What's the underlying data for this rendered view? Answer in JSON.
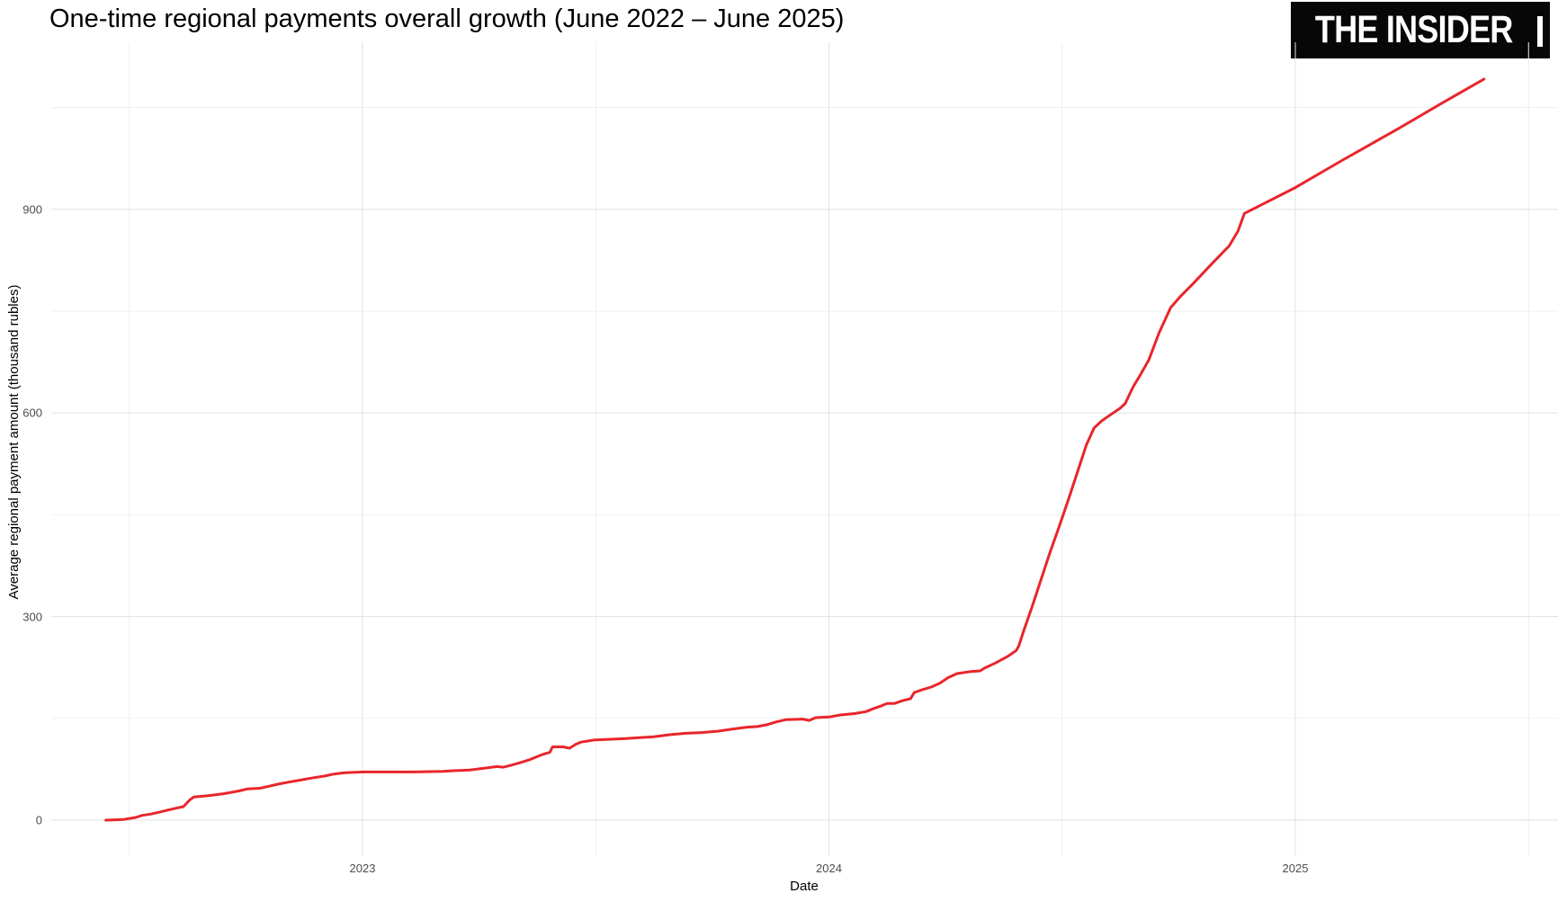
{
  "title": "One-time regional payments overall growth (June 2022 – June 2025)",
  "logo": {
    "text": "THE INSIDER"
  },
  "chart_data": {
    "type": "line",
    "title": "One-time regional payments overall growth (June 2022 – June 2025)",
    "xlabel": "Date",
    "ylabel": "Average regional payment amount (thousand rubles)",
    "x_tick_labels": [
      "2023",
      "2024",
      "2025"
    ],
    "x_tick_years": [
      2023,
      2024,
      2025
    ],
    "x_minor_tick_years": [
      2022.5,
      2023.5,
      2024.5,
      2025.5
    ],
    "y_tick_labels": [
      "0",
      "300",
      "600",
      "900"
    ],
    "y_tick_values": [
      0,
      300,
      600,
      900
    ],
    "y_minor_tick_values": [
      150,
      450,
      750,
      1050
    ],
    "x_range": [
      "2022-06-13",
      "2025-05-27"
    ],
    "ylim": [
      0,
      1100
    ],
    "grid": "on",
    "legend": "none",
    "line_color": "#e8262b",
    "series": [
      {
        "name": "Average regional payment amount (thousand rubles)",
        "points": [
          [
            "2022-06-13",
            0
          ],
          [
            "2022-06-27",
            1
          ],
          [
            "2022-07-06",
            4
          ],
          [
            "2022-07-11",
            7
          ],
          [
            "2022-07-18",
            9
          ],
          [
            "2022-07-25",
            12
          ],
          [
            "2022-08-01",
            15
          ],
          [
            "2022-08-08",
            18
          ],
          [
            "2022-08-13",
            20
          ],
          [
            "2022-08-18",
            30
          ],
          [
            "2022-08-21",
            34
          ],
          [
            "2022-09-02",
            36
          ],
          [
            "2022-09-14",
            39
          ],
          [
            "2022-09-26",
            43
          ],
          [
            "2022-10-02",
            46
          ],
          [
            "2022-10-12",
            47
          ],
          [
            "2022-10-19",
            50
          ],
          [
            "2022-10-26",
            53
          ],
          [
            "2022-11-04",
            56
          ],
          [
            "2022-11-13",
            59
          ],
          [
            "2022-11-22",
            62
          ],
          [
            "2022-12-02",
            65
          ],
          [
            "2022-12-09",
            68
          ],
          [
            "2022-12-18",
            70
          ],
          [
            "2023-01-01",
            71
          ],
          [
            "2023-02-10",
            71
          ],
          [
            "2023-03-03",
            72
          ],
          [
            "2023-03-13",
            73
          ],
          [
            "2023-03-24",
            74
          ],
          [
            "2023-04-07",
            77
          ],
          [
            "2023-04-15",
            79
          ],
          [
            "2023-04-20",
            78
          ],
          [
            "2023-04-26",
            81
          ],
          [
            "2023-05-03",
            85
          ],
          [
            "2023-05-10",
            89
          ],
          [
            "2023-05-19",
            96
          ],
          [
            "2023-05-26",
            100
          ],
          [
            "2023-05-28",
            108
          ],
          [
            "2023-06-06",
            108
          ],
          [
            "2023-06-11",
            106
          ],
          [
            "2023-06-16",
            112
          ],
          [
            "2023-06-20",
            115
          ],
          [
            "2023-06-30",
            118
          ],
          [
            "2023-07-23",
            120
          ],
          [
            "2023-08-16",
            123
          ],
          [
            "2023-08-29",
            126
          ],
          [
            "2023-09-11",
            128
          ],
          [
            "2023-09-23",
            129
          ],
          [
            "2023-10-05",
            131
          ],
          [
            "2023-10-16",
            134
          ],
          [
            "2023-10-28",
            137
          ],
          [
            "2023-11-06",
            138
          ],
          [
            "2023-11-14",
            141
          ],
          [
            "2023-11-21",
            145
          ],
          [
            "2023-11-28",
            148
          ],
          [
            "2023-12-11",
            149
          ],
          [
            "2023-12-16",
            147
          ],
          [
            "2023-12-21",
            151
          ],
          [
            "2024-01-01",
            152
          ],
          [
            "2024-01-10",
            155
          ],
          [
            "2024-01-21",
            157
          ],
          [
            "2024-01-30",
            160
          ],
          [
            "2024-02-05",
            164
          ],
          [
            "2024-02-11",
            168
          ],
          [
            "2024-02-16",
            172
          ],
          [
            "2024-02-22",
            172
          ],
          [
            "2024-02-28",
            176
          ],
          [
            "2024-03-04",
            179
          ],
          [
            "2024-03-07",
            188
          ],
          [
            "2024-03-13",
            192
          ],
          [
            "2024-03-20",
            196
          ],
          [
            "2024-03-27",
            202
          ],
          [
            "2024-04-03",
            210
          ],
          [
            "2024-04-10",
            216
          ],
          [
            "2024-04-21",
            219
          ],
          [
            "2024-04-28",
            220
          ],
          [
            "2024-05-01",
            224
          ],
          [
            "2024-05-09",
            231
          ],
          [
            "2024-05-19",
            241
          ],
          [
            "2024-05-26",
            250
          ],
          [
            "2024-05-28",
            257
          ],
          [
            "2024-06-01",
            277
          ],
          [
            "2024-06-08",
            315
          ],
          [
            "2024-06-15",
            355
          ],
          [
            "2024-06-22",
            395
          ],
          [
            "2024-06-29",
            432
          ],
          [
            "2024-07-06",
            473
          ],
          [
            "2024-07-13",
            513
          ],
          [
            "2024-07-20",
            553
          ],
          [
            "2024-07-26",
            578
          ],
          [
            "2024-08-02",
            589
          ],
          [
            "2024-08-09",
            598
          ],
          [
            "2024-08-16",
            607
          ],
          [
            "2024-08-20",
            614
          ],
          [
            "2024-08-26",
            638
          ],
          [
            "2024-09-01",
            655
          ],
          [
            "2024-09-08",
            678
          ],
          [
            "2024-09-16",
            718
          ],
          [
            "2024-09-25",
            755
          ],
          [
            "2024-10-02",
            771
          ],
          [
            "2024-10-13",
            792
          ],
          [
            "2024-10-27",
            820
          ],
          [
            "2024-11-10",
            846
          ],
          [
            "2024-11-17",
            868
          ],
          [
            "2024-11-22",
            894
          ],
          [
            "2025-01-01",
            932
          ],
          [
            "2025-02-07",
            972
          ],
          [
            "2025-03-20",
            1018
          ],
          [
            "2025-04-24",
            1056
          ],
          [
            "2025-05-27",
            1092
          ]
        ]
      }
    ]
  }
}
